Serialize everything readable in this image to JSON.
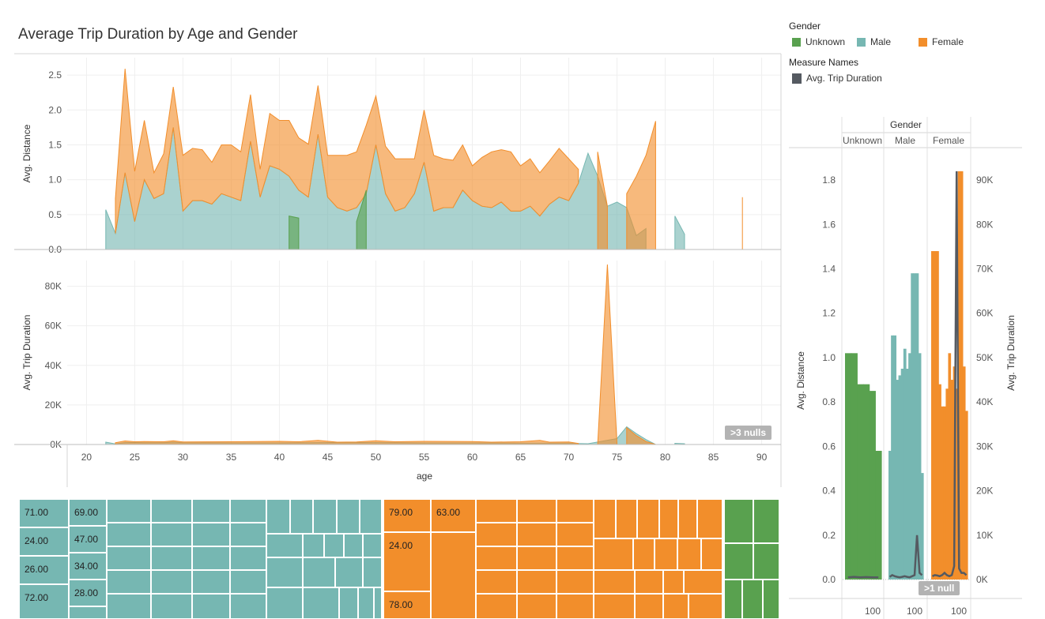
{
  "title": "Average Trip Duration by Age and Gender",
  "colors": {
    "unknown": "#59a14f",
    "male": "#76b7b2",
    "female": "#f28e2b",
    "measure": "#555a61"
  },
  "legend": {
    "gender_title": "Gender",
    "gender_items": [
      {
        "label": "Unknown",
        "color": "#59a14f"
      },
      {
        "label": "Male",
        "color": "#76b7b2"
      },
      {
        "label": "Female",
        "color": "#f28e2b"
      }
    ],
    "measure_title": "Measure Names",
    "measure_items": [
      {
        "label": "Avg. Trip Duration",
        "color": "#555a61"
      }
    ]
  },
  "badges": {
    "main_nulls": ">3 nulls",
    "side_nulls": ">1 null"
  },
  "chart_data": [
    {
      "type": "area",
      "panel": "Avg. Distance by age",
      "xlabel": "age",
      "ylabel": "Avg. Distance",
      "xlim": [
        18,
        92
      ],
      "ylim": [
        0,
        2.75
      ],
      "x_ticks": [
        20,
        25,
        30,
        35,
        40,
        45,
        50,
        55,
        60,
        65,
        70,
        75,
        80,
        85,
        90
      ],
      "y_ticks": [
        "0.0",
        "0.5",
        "1.0",
        "1.5",
        "2.0",
        "2.5"
      ],
      "y_tick_values": [
        0,
        0.5,
        1.0,
        1.5,
        2.0,
        2.5
      ],
      "grid": true,
      "series": [
        {
          "name": "Male",
          "color": "#76b7b2",
          "stack_bottom": true,
          "x": [
            22,
            23,
            24,
            25,
            26,
            27,
            28,
            29,
            30,
            31,
            32,
            33,
            34,
            35,
            36,
            37,
            38,
            39,
            40,
            41,
            42,
            43,
            44,
            45,
            46,
            47,
            48,
            49,
            50,
            51,
            52,
            53,
            54,
            55,
            56,
            57,
            58,
            59,
            60,
            61,
            62,
            63,
            64,
            65,
            66,
            67,
            68,
            69,
            70,
            71,
            72,
            73,
            74,
            75,
            76,
            77,
            78
          ],
          "values": [
            0.57,
            0.23,
            1.1,
            0.4,
            1.0,
            0.73,
            0.8,
            1.75,
            0.55,
            0.7,
            0.7,
            0.65,
            0.8,
            0.75,
            0.7,
            1.55,
            0.75,
            1.2,
            1.15,
            1.05,
            0.85,
            0.75,
            1.65,
            0.75,
            0.6,
            0.55,
            0.6,
            0.8,
            1.5,
            0.8,
            0.55,
            0.6,
            0.8,
            1.25,
            0.55,
            0.6,
            0.6,
            0.85,
            0.7,
            0.62,
            0.6,
            0.68,
            0.55,
            0.55,
            0.62,
            0.48,
            0.65,
            0.75,
            0.7,
            0.95,
            1.38,
            1.05,
            0.62,
            0.68,
            0.6,
            0.2,
            0.3
          ]
        },
        {
          "name": "Male",
          "color": "#76b7b2",
          "stack_bottom": true,
          "x": [
            81,
            82
          ],
          "values": [
            0.48,
            0.22
          ]
        },
        {
          "name": "Female",
          "color": "#f28e2b",
          "stack_on": "Male",
          "x": [
            23,
            24,
            25,
            26,
            27,
            28,
            29,
            30,
            31,
            32,
            33,
            34,
            35,
            36,
            37,
            38,
            39,
            40,
            41,
            42,
            43,
            44,
            45,
            46,
            47,
            48,
            49,
            50,
            51,
            52,
            53,
            54,
            55,
            56,
            57,
            58,
            59,
            60,
            61,
            62,
            63,
            64,
            65,
            66,
            67,
            68,
            69,
            70,
            71
          ],
          "values": [
            0.5,
            1.49,
            0.72,
            0.85,
            0.37,
            0.57,
            0.58,
            0.8,
            0.75,
            0.73,
            0.6,
            0.7,
            0.75,
            0.7,
            0.67,
            0.4,
            0.75,
            0.7,
            0.8,
            0.75,
            0.76,
            0.7,
            0.6,
            0.75,
            0.8,
            0.8,
            0.98,
            0.7,
            0.68,
            0.75,
            0.7,
            0.5,
            0.75,
            0.8,
            0.7,
            0.68,
            0.65,
            0.5,
            0.7,
            0.8,
            0.75,
            0.85,
            0.65,
            0.68,
            0.62,
            0.62,
            0.7,
            0.6,
            0.2
          ]
        },
        {
          "name": "Female",
          "color": "#f28e2b",
          "stack_bottom": true,
          "x": [
            73,
            74
          ],
          "values": [
            1.4,
            0.62
          ]
        },
        {
          "name": "Female",
          "color": "#f28e2b",
          "stack_bottom": true,
          "x": [
            76,
            77,
            78,
            79
          ],
          "values": [
            0.8,
            1.05,
            1.35,
            1.84
          ]
        },
        {
          "name": "Female",
          "color": "#f28e2b",
          "stack_bottom": true,
          "x": [
            88,
            88
          ],
          "values": [
            0.75,
            0.75
          ]
        },
        {
          "name": "Unknown",
          "color": "#59a14f",
          "stack_bottom": true,
          "x": [
            41,
            42
          ],
          "values": [
            0.48,
            0.45
          ]
        },
        {
          "name": "Unknown",
          "color": "#59a14f",
          "stack_bottom": true,
          "x": [
            48,
            49
          ],
          "values": [
            0.4,
            0.85
          ]
        }
      ]
    },
    {
      "type": "area",
      "panel": "Avg. Trip Duration by age",
      "xlabel": "age",
      "ylabel": "Avg. Trip Duration",
      "xlim": [
        18,
        92
      ],
      "ylim": [
        0,
        93000
      ],
      "x_ticks": [
        20,
        25,
        30,
        35,
        40,
        45,
        50,
        55,
        60,
        65,
        70,
        75,
        80,
        85,
        90
      ],
      "y_ticks": [
        "0K",
        "20K",
        "40K",
        "60K",
        "80K"
      ],
      "y_tick_values": [
        0,
        20000,
        40000,
        60000,
        80000
      ],
      "grid": true,
      "series": [
        {
          "name": "Male",
          "color": "#76b7b2",
          "x": [
            22,
            23,
            24,
            25,
            26,
            28,
            29,
            30,
            35,
            40,
            45,
            50,
            55,
            60,
            65,
            70,
            71,
            72,
            75,
            76,
            77,
            78,
            79
          ],
          "values": [
            1200,
            300,
            1000,
            1000,
            900,
            900,
            1200,
            900,
            800,
            800,
            1000,
            1000,
            800,
            800,
            700,
            700,
            500,
            400,
            3000,
            9000,
            5500,
            2500,
            0
          ]
        },
        {
          "name": "Female",
          "color": "#f28e2b",
          "x": [
            23,
            24,
            25,
            26,
            28,
            29,
            30,
            35,
            40,
            42,
            44,
            46,
            48,
            50,
            52,
            55,
            60,
            62,
            65,
            67,
            68,
            70,
            71
          ],
          "values": [
            900,
            1800,
            1400,
            1500,
            1400,
            1900,
            1300,
            1400,
            1600,
            1400,
            2100,
            1200,
            1300,
            1900,
            1400,
            1600,
            1500,
            1200,
            1400,
            2100,
            1200,
            1300,
            500
          ]
        },
        {
          "name": "Female",
          "color": "#f28e2b",
          "x": [
            73,
            74,
            75
          ],
          "values": [
            0,
            91000,
            0
          ]
        },
        {
          "name": "Female",
          "color": "#f28e2b",
          "x": [
            76,
            77,
            78,
            79
          ],
          "values": [
            8500,
            4500,
            1500,
            0
          ]
        },
        {
          "name": "Male",
          "color": "#76b7b2",
          "x": [
            81,
            82
          ],
          "values": [
            600,
            400
          ]
        }
      ]
    },
    {
      "type": "bar",
      "panel": "Distance by Gender",
      "column_header_title": "Gender",
      "column_headers": [
        "Unknown",
        "Male",
        "Female"
      ],
      "ylabel_left": "Avg. Distance",
      "ylabel_right": "Avg. Trip Duration",
      "ylim_left": [
        0,
        1.9
      ],
      "ylim_right": [
        0,
        95000
      ],
      "y_ticks_left": [
        "0.0",
        "0.2",
        "0.4",
        "0.6",
        "0.8",
        "1.0",
        "1.2",
        "1.4",
        "1.6",
        "1.8"
      ],
      "y_tick_values_left": [
        0,
        0.2,
        0.4,
        0.6,
        0.8,
        1.0,
        1.2,
        1.4,
        1.6,
        1.8
      ],
      "y_ticks_right": [
        "0K",
        "10K",
        "20K",
        "30K",
        "40K",
        "50K",
        "60K",
        "70K",
        "80K",
        "90K"
      ],
      "y_tick_values_right": [
        0,
        10000,
        20000,
        30000,
        40000,
        50000,
        60000,
        70000,
        80000,
        90000
      ],
      "x_tick_labels": [
        "100",
        "100",
        "100"
      ],
      "panes": [
        {
          "name": "Unknown",
          "color": "#59a14f",
          "bars": [
            1.02,
            1.02,
            0.88,
            0.88,
            0.85,
            0.58
          ],
          "line": [
            0.01,
            0.012,
            0.01,
            0.011,
            0.01,
            0.01
          ]
        },
        {
          "name": "Male",
          "color": "#76b7b2",
          "bars": [
            0.58,
            1.1,
            1.1,
            0.9,
            0.92,
            0.95,
            1.04,
            0.95,
            1.02,
            1.38,
            1.38,
            1.38,
            1.02,
            0.48
          ],
          "line": [
            0.012,
            0.02,
            0.015,
            0.012,
            0.01,
            0.012,
            0.015,
            0.012,
            0.01,
            0.015,
            0.02,
            0.2,
            0.03,
            0.02
          ]
        },
        {
          "name": "Female",
          "color": "#f28e2b",
          "bars": [
            1.48,
            1.48,
            1.48,
            0.88,
            0.78,
            0.78,
            0.86,
            1.02,
            0.9,
            0.96,
            0.86,
            1.84,
            1.84,
            0.96,
            0.76
          ],
          "line": [
            0.015,
            0.02,
            0.018,
            0.015,
            0.02,
            0.03,
            0.02,
            0.015,
            0.02,
            0.06,
            1.84,
            0.05,
            0.03,
            0.03,
            0.02
          ]
        }
      ]
    },
    {
      "type": "table",
      "panel": "treemap",
      "labels_male": [
        "71.00",
        "24.00",
        "26.00",
        "72.00",
        "69.00",
        "47.00",
        "34.00",
        "28.00"
      ],
      "labels_female": [
        "79.00",
        "63.00",
        "24.00",
        "78.00"
      ]
    }
  ]
}
